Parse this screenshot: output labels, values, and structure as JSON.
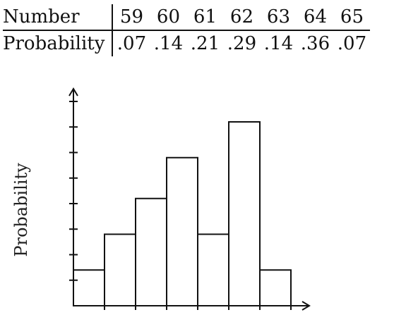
{
  "table": {
    "row1_label": "Number",
    "row2_label": "Probability",
    "numbers": [
      "59",
      "60",
      "61",
      "62",
      "63",
      "64",
      "65"
    ],
    "probabilities": [
      ".07",
      ".14",
      ".21",
      ".29",
      ".14",
      ".36",
      ".07"
    ]
  },
  "chart_data": {
    "type": "bar",
    "categories": [
      "59",
      "60",
      "61",
      "62",
      "63",
      "64",
      "65"
    ],
    "values": [
      0.07,
      0.14,
      0.21,
      0.29,
      0.14,
      0.36,
      0.07
    ],
    "title": "",
    "xlabel": "",
    "ylabel": "Probability",
    "ylim": [
      0,
      0.4
    ],
    "y_ticks": [
      0.05,
      0.1,
      0.15,
      0.2,
      0.25,
      0.3,
      0.35,
      0.4
    ],
    "grid": false,
    "legend": "none",
    "bar_fill": "#ffffff",
    "bar_stroke": "#111111"
  }
}
